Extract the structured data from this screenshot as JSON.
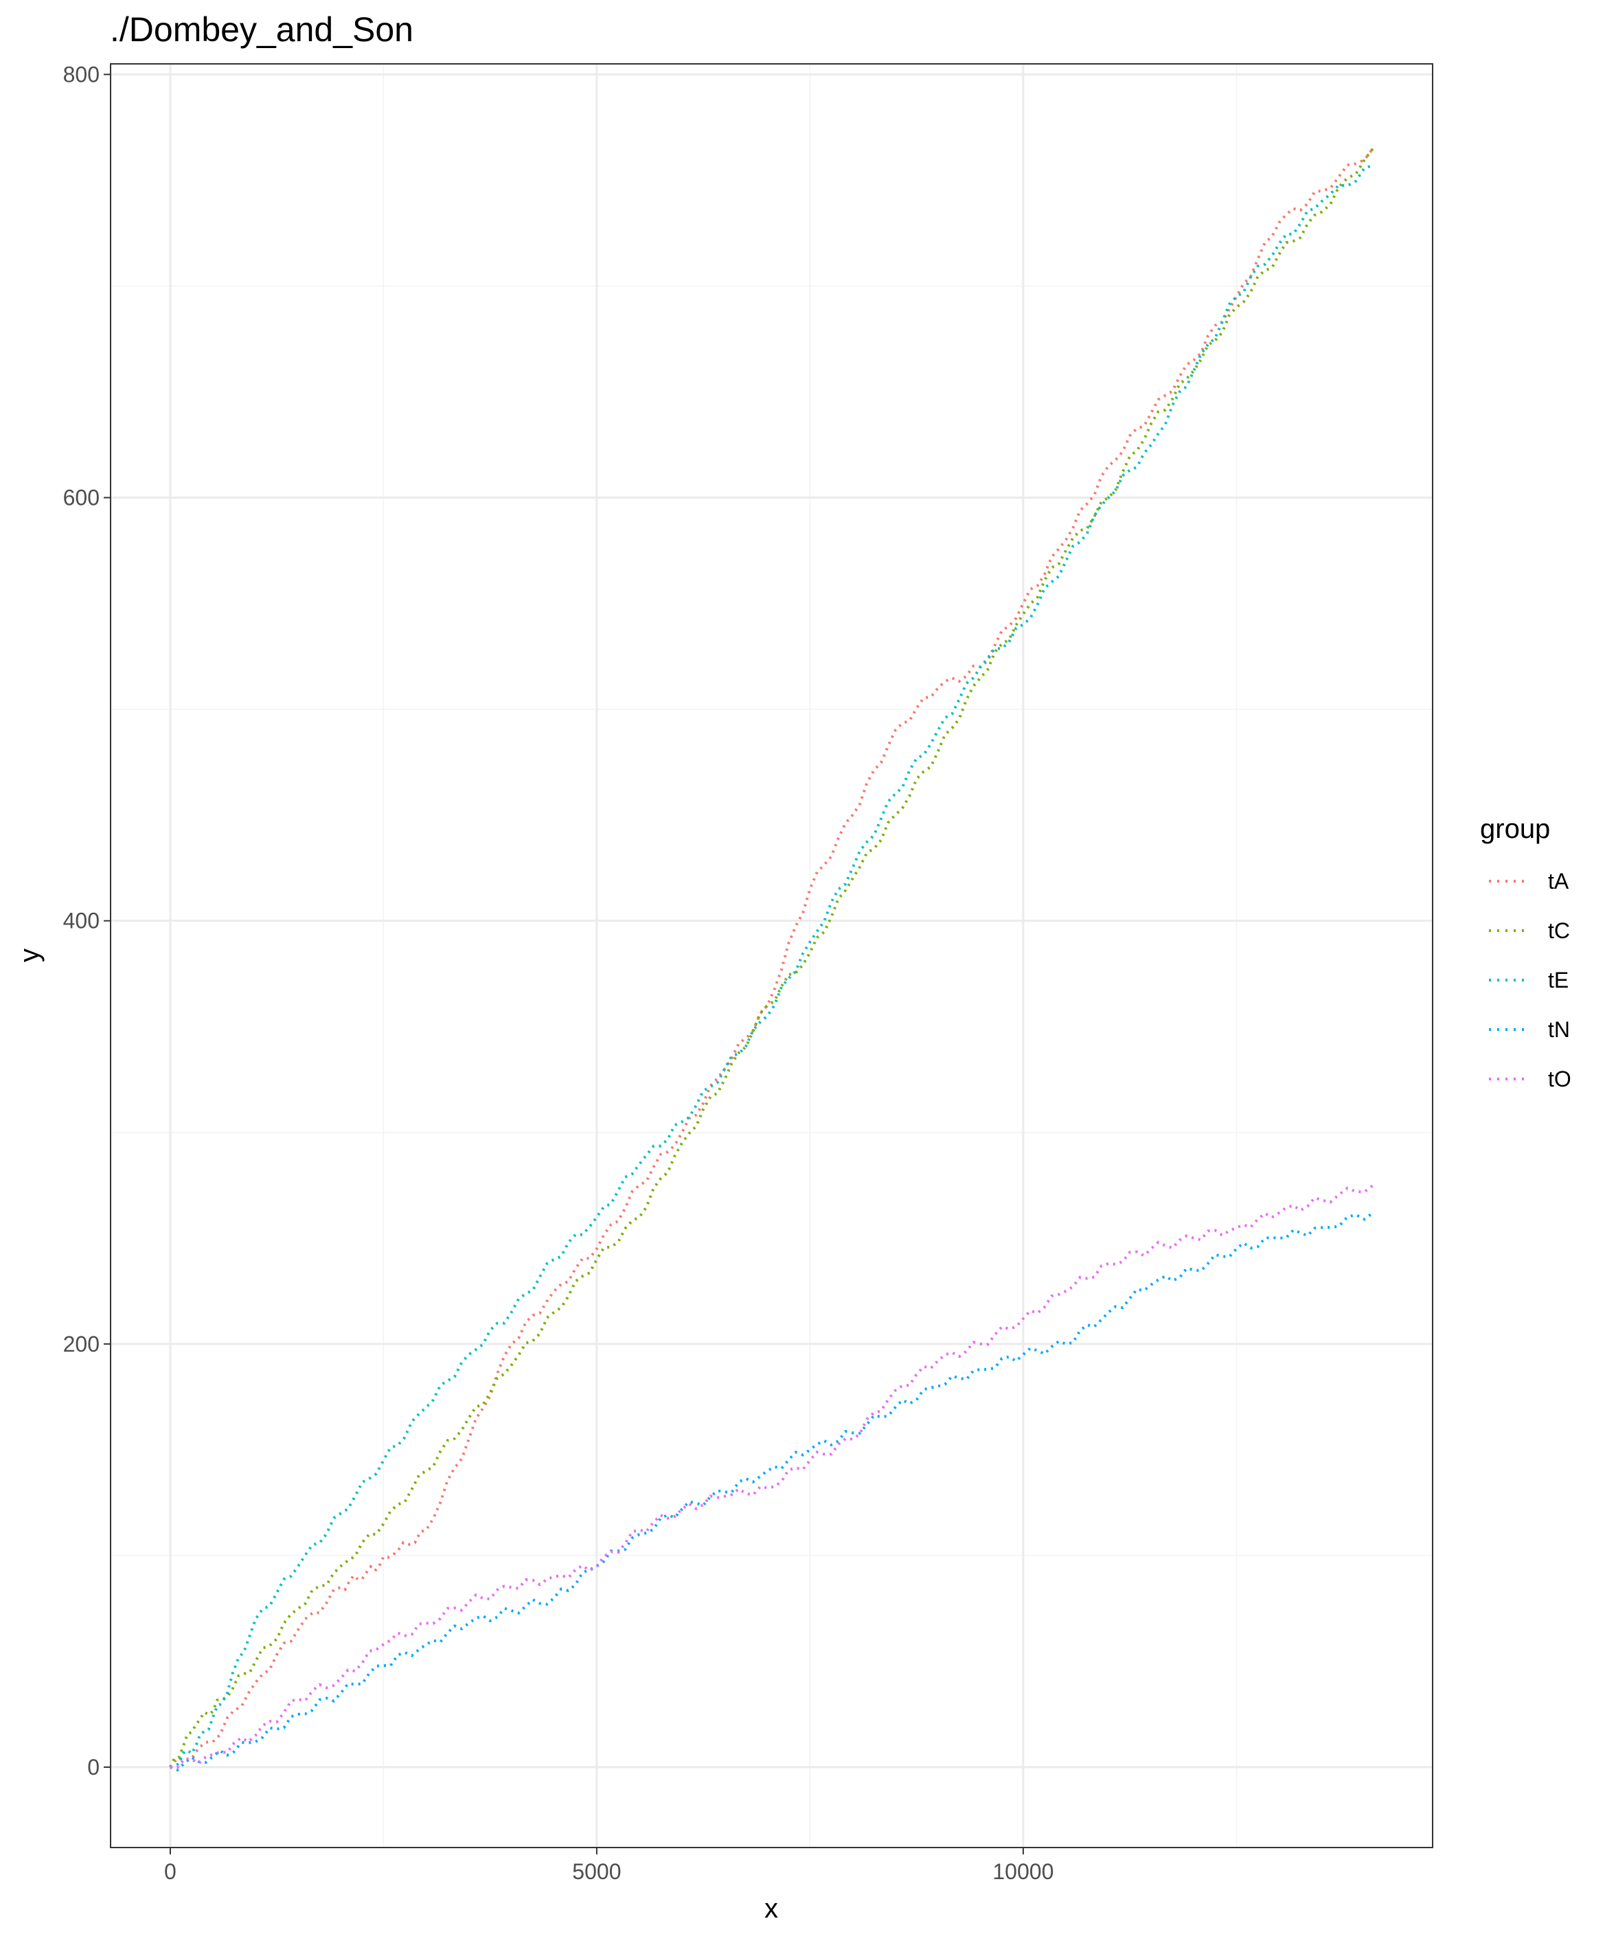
{
  "chart_data": {
    "type": "line",
    "title": "./Dombey_and_Son",
    "xlabel": "x",
    "ylabel": "y",
    "xlim": [
      -700,
      14800
    ],
    "ylim": [
      -38,
      805
    ],
    "x_ticks": [
      0,
      5000,
      10000
    ],
    "y_ticks": [
      0,
      200,
      400,
      600,
      800
    ],
    "x_tick_labels": [
      "0",
      "5000",
      "10000"
    ],
    "y_tick_labels": [
      "0",
      "200",
      "400",
      "600",
      "800"
    ],
    "grid": true,
    "legend": {
      "title": "group",
      "position": "right"
    },
    "series": [
      {
        "name": "tA",
        "color": "#F8766D",
        "x": [
          0,
          500,
          1000,
          1500,
          2000,
          2300,
          2600,
          3000,
          3500,
          4000,
          4500,
          5000,
          5500,
          6000,
          6500,
          7000,
          7500,
          8000,
          8500,
          9000,
          9500,
          10000,
          10500,
          11000,
          11500,
          12000,
          12500,
          13000,
          13500,
          14100
        ],
        "y": [
          0,
          12,
          40,
          65,
          85,
          92,
          100,
          112,
          155,
          200,
          225,
          245,
          275,
          300,
          330,
          360,
          415,
          450,
          490,
          510,
          520,
          550,
          580,
          615,
          640,
          665,
          695,
          730,
          745,
          765
        ]
      },
      {
        "name": "tC",
        "color": "#7CAE00",
        "x": [
          0,
          300,
          600,
          1000,
          1500,
          2000,
          2500,
          3000,
          3500,
          4000,
          4500,
          5000,
          5500,
          6000,
          6500,
          7000,
          7500,
          8000,
          8500,
          9000,
          9500,
          10000,
          10500,
          11000,
          11500,
          12000,
          12500,
          13000,
          13500,
          14100
        ],
        "y": [
          0,
          20,
          32,
          50,
          75,
          95,
          115,
          140,
          165,
          190,
          215,
          240,
          260,
          295,
          325,
          360,
          385,
          420,
          450,
          480,
          515,
          545,
          575,
          600,
          635,
          660,
          690,
          715,
          735,
          765
        ]
      },
      {
        "name": "tE",
        "color": "#00BFC4",
        "x": [
          0,
          300,
          600,
          1000,
          1500,
          2000,
          2500,
          3000,
          3500,
          4000,
          4500,
          5000,
          5500,
          6000,
          6500,
          7000,
          7500,
          8000,
          8500,
          9000,
          9500,
          10000,
          10500,
          11000,
          11500,
          12000,
          12500,
          13000,
          13500,
          14100
        ],
        "y": [
          0,
          10,
          30,
          70,
          95,
          120,
          145,
          170,
          195,
          215,
          240,
          260,
          285,
          305,
          330,
          355,
          390,
          425,
          460,
          490,
          520,
          540,
          570,
          600,
          625,
          660,
          695,
          720,
          740,
          757
        ]
      },
      {
        "name": "tN",
        "color": "#00A9FF",
        "x": [
          0,
          500,
          1000,
          1500,
          2000,
          2500,
          3000,
          3500,
          4000,
          4500,
          5000,
          5500,
          6000,
          6500,
          7000,
          7500,
          8000,
          8500,
          9000,
          9500,
          10000,
          10500,
          11000,
          11500,
          12000,
          12500,
          13000,
          13500,
          14100
        ],
        "y": [
          0,
          5,
          12,
          25,
          35,
          48,
          58,
          68,
          74,
          80,
          95,
          110,
          122,
          130,
          140,
          150,
          158,
          170,
          180,
          188,
          195,
          200,
          215,
          228,
          235,
          245,
          250,
          255,
          262
        ]
      },
      {
        "name": "tO",
        "color": "#E76BF3",
        "x": [
          0,
          500,
          1000,
          1500,
          2000,
          2500,
          3000,
          3500,
          4000,
          4500,
          5000,
          5500,
          6000,
          6500,
          7000,
          7500,
          8000,
          8500,
          9000,
          9500,
          10000,
          10500,
          11000,
          11500,
          12000,
          12500,
          13000,
          13500,
          14100
        ],
        "y": [
          0,
          6,
          15,
          32,
          42,
          58,
          68,
          78,
          85,
          90,
          95,
          112,
          122,
          128,
          132,
          145,
          155,
          178,
          192,
          200,
          212,
          225,
          238,
          245,
          250,
          255,
          262,
          268,
          275
        ]
      }
    ]
  }
}
